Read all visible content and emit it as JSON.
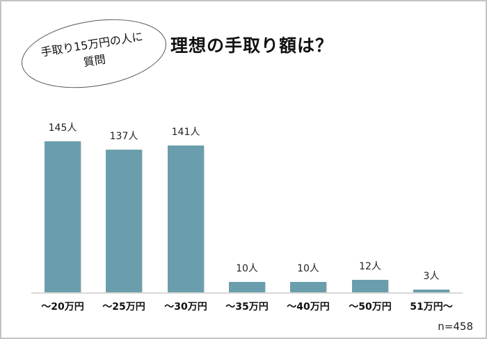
{
  "bubble": {
    "line1": "手取り15万円の人に",
    "line2": "質問"
  },
  "title": "理想の手取り額は？",
  "sample_size": "n=458",
  "colors": {
    "bar": "#6b9eac",
    "baseline": "#d9d9d9",
    "frame": "#c3c3c3"
  },
  "chart_data": {
    "type": "bar",
    "title": "理想の手取り額は？",
    "subtitle": "手取り15万円の人に質問",
    "categories": [
      "～20万円",
      "～25万円",
      "～30万円",
      "～35万円",
      "～40万円",
      "～50万円",
      "51万円～"
    ],
    "values": [
      145,
      137,
      141,
      10,
      10,
      12,
      3
    ],
    "value_labels": [
      "145人",
      "137人",
      "141人",
      "10人",
      "10人",
      "12人",
      "3人"
    ],
    "unit": "人",
    "xlabel": "",
    "ylabel": "",
    "ylim": [
      0,
      160
    ],
    "grid": false,
    "legend": null,
    "annotation": "n=458"
  }
}
